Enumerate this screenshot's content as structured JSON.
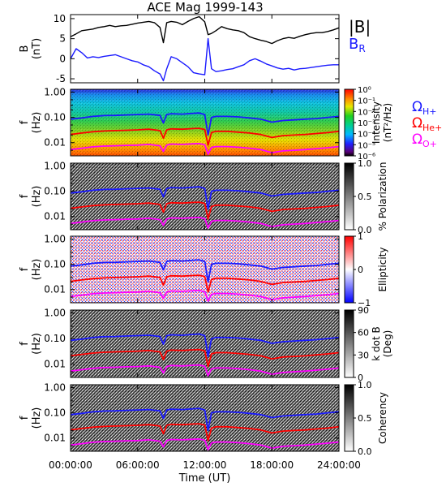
{
  "chart_data": {
    "type": "line",
    "title": "ACE Mag 1999-143",
    "xlabel": "Time (UT)",
    "x_ticks": [
      "00:00:00",
      "06:00:00",
      "12:00:00",
      "18:00:00",
      "24:00:00"
    ],
    "x_range_hours": [
      0,
      24
    ],
    "panels": [
      {
        "id": "b-field",
        "type": "line",
        "ylabel": "B",
        "yunit": "(nT)",
        "ylim": [
          -6,
          11
        ],
        "y_ticks": [
          "10",
          "5",
          "0",
          "-5"
        ],
        "legend": [
          "|B|",
          "B_R"
        ],
        "series": [
          {
            "name": "|B|",
            "color": "#000000",
            "x": [
              0,
              0.5,
              1,
              1.5,
              2,
              2.5,
              3,
              3.5,
              4,
              4.5,
              5,
              5.5,
              6,
              6.5,
              7,
              7.5,
              8,
              8.3,
              8.6,
              9,
              9.5,
              10,
              10.5,
              11,
              11.5,
              12,
              12.3,
              12.6,
              13,
              13.5,
              14,
              14.5,
              15,
              15.5,
              16,
              16.5,
              17,
              17.5,
              18,
              18.5,
              19,
              19.5,
              20,
              20.5,
              21,
              21.5,
              22,
              22.5,
              23,
              23.5,
              24
            ],
            "values": [
              5.5,
              6.2,
              7.0,
              7.2,
              7.4,
              7.8,
              8.0,
              8.3,
              8.0,
              8.2,
              8.3,
              8.6,
              8.9,
              9.1,
              9.3,
              9.0,
              7.8,
              4.0,
              9.0,
              9.3,
              9.1,
              8.5,
              9.3,
              10.0,
              10.5,
              9.2,
              6.0,
              6.3,
              7.0,
              8.0,
              7.5,
              7.2,
              7.0,
              6.5,
              5.5,
              5.0,
              4.6,
              4.3,
              3.8,
              4.5,
              5.0,
              5.3,
              5.1,
              5.6,
              6.0,
              6.3,
              6.5,
              6.5,
              6.8,
              7.2,
              7.7
            ]
          },
          {
            "name": "B_R",
            "color": "#1a1aff",
            "x": [
              0,
              0.5,
              1,
              1.5,
              2,
              2.5,
              3,
              3.5,
              4,
              4.5,
              5,
              5.5,
              6,
              6.5,
              7,
              7.5,
              8,
              8.3,
              8.6,
              9,
              9.5,
              10,
              10.5,
              11,
              11.5,
              12,
              12.3,
              12.6,
              13,
              13.5,
              14,
              14.5,
              15,
              15.5,
              16,
              16.5,
              17,
              17.5,
              18,
              18.5,
              19,
              19.5,
              20,
              20.5,
              21,
              21.5,
              22,
              22.5,
              23,
              23.5,
              24
            ],
            "values": [
              0,
              2.5,
              1.5,
              0.2,
              0.5,
              0.3,
              0.6,
              0.8,
              1.0,
              0.5,
              0.0,
              -0.5,
              -0.8,
              -1.5,
              -2.0,
              -3.0,
              -3.8,
              -5.5,
              -2.5,
              0.5,
              0.0,
              -1.0,
              -2.0,
              -3.5,
              -3.8,
              -4.0,
              5.0,
              -2.5,
              -3.2,
              -3.0,
              -2.7,
              -2.5,
              -2.0,
              -1.5,
              -0.5,
              0.0,
              -0.6,
              -1.3,
              -1.8,
              -2.3,
              -2.6,
              -2.4,
              -2.8,
              -2.5,
              -2.4,
              -2.2,
              -2.0,
              -1.8,
              -1.6,
              -1.5,
              -1.5
            ]
          }
        ]
      },
      {
        "id": "intensity",
        "type": "heatmap",
        "ylabel": "f",
        "yunit": "(Hz)",
        "y_scale": "log",
        "ylim": [
          0.003,
          1.3
        ],
        "y_ticks": [
          "1.00",
          "0.10",
          "0.01"
        ],
        "colorbar_label": "Intensity",
        "colorbar_unit": "(nT²/Hz)",
        "colorbar_ticks": [
          "10⁰",
          "10⁻¹",
          "10⁻²",
          "10⁻³",
          "10⁻⁴",
          "10⁻⁵",
          "10⁻⁶"
        ],
        "colorbar_scale": "rainbow"
      },
      {
        "id": "polarization",
        "type": "heatmap",
        "ylabel": "f",
        "yunit": "(Hz)",
        "y_scale": "log",
        "ylim": [
          0.003,
          1.3
        ],
        "y_ticks": [
          "1.00",
          "0.10",
          "0.01"
        ],
        "colorbar_label": "% Polarization",
        "colorbar_ticks": [
          "1.0",
          "0.5",
          "0.0"
        ],
        "colorbar_scale": "grayscale"
      },
      {
        "id": "ellipticity",
        "type": "heatmap",
        "ylabel": "f",
        "yunit": "(Hz)",
        "y_scale": "log",
        "ylim": [
          0.003,
          1.3
        ],
        "y_ticks": [
          "1.00",
          "0.10",
          "0.01"
        ],
        "colorbar_label": "Ellipticity",
        "colorbar_ticks": [
          "1",
          "0",
          "−1"
        ],
        "colorbar_scale": "blue-white-red"
      },
      {
        "id": "k-dot-b",
        "type": "heatmap",
        "ylabel": "f",
        "yunit": "(Hz)",
        "y_scale": "log",
        "ylim": [
          0.003,
          1.3
        ],
        "y_ticks": [
          "1.00",
          "0.10",
          "0.01"
        ],
        "colorbar_label": "k dot B",
        "colorbar_unit": "(Deg)",
        "colorbar_ticks": [
          "90",
          "60",
          "30",
          "0"
        ],
        "colorbar_scale": "grayscale"
      },
      {
        "id": "coherency",
        "type": "heatmap",
        "ylabel": "f",
        "yunit": "(Hz)",
        "y_scale": "log",
        "ylim": [
          0.003,
          1.3
        ],
        "y_ticks": [
          "1.00",
          "0.10",
          "0.01"
        ],
        "colorbar_label": "Coherency",
        "colorbar_ticks": [
          "1.0",
          "0.5",
          "0.0"
        ],
        "colorbar_scale": "grayscale"
      }
    ],
    "gyrofrequency_lines": [
      {
        "name": "ΩH+",
        "label_main": "Ω",
        "label_sub": "H+",
        "color": "#1a1aff",
        "x": [
          0,
          1,
          2,
          3,
          4,
          5,
          6,
          7,
          8,
          8.3,
          8.6,
          9,
          10,
          11,
          11.5,
          12,
          12.3,
          12.6,
          13,
          14,
          15,
          16,
          17,
          18,
          19,
          20,
          21,
          22,
          23,
          24
        ],
        "values": [
          0.085,
          0.095,
          0.11,
          0.118,
          0.12,
          0.125,
          0.13,
          0.135,
          0.12,
          0.06,
          0.13,
          0.14,
          0.135,
          0.145,
          0.15,
          0.13,
          0.02,
          0.1,
          0.11,
          0.11,
          0.105,
          0.095,
          0.085,
          0.065,
          0.075,
          0.08,
          0.085,
          0.09,
          0.1,
          0.11
        ]
      },
      {
        "name": "ΩHe+",
        "label_main": "Ω",
        "label_sub": "He+",
        "color": "#ff0000",
        "x": [
          0,
          1,
          2,
          3,
          4,
          5,
          6,
          7,
          8,
          8.3,
          8.6,
          9,
          10,
          11,
          11.5,
          12,
          12.3,
          12.6,
          13,
          14,
          15,
          16,
          17,
          18,
          19,
          20,
          21,
          22,
          23,
          24
        ],
        "values": [
          0.021,
          0.024,
          0.027,
          0.029,
          0.03,
          0.031,
          0.032,
          0.034,
          0.03,
          0.015,
          0.032,
          0.035,
          0.034,
          0.036,
          0.037,
          0.033,
          0.008,
          0.025,
          0.028,
          0.028,
          0.026,
          0.024,
          0.021,
          0.016,
          0.019,
          0.02,
          0.021,
          0.023,
          0.025,
          0.028
        ]
      },
      {
        "name": "ΩO+",
        "label_main": "Ω",
        "label_sub": "O+",
        "color": "#ff00ff",
        "x": [
          0,
          1,
          2,
          3,
          4,
          5,
          6,
          7,
          8,
          8.3,
          8.6,
          9,
          10,
          11,
          11.5,
          12,
          12.3,
          12.6,
          13,
          14,
          15,
          16,
          17,
          18,
          19,
          20,
          21,
          22,
          23,
          24
        ],
        "values": [
          0.0053,
          0.006,
          0.0068,
          0.0073,
          0.0075,
          0.0078,
          0.008,
          0.0085,
          0.0075,
          0.0045,
          0.008,
          0.0088,
          0.0085,
          0.009,
          0.0092,
          0.0082,
          0.0035,
          0.0065,
          0.007,
          0.007,
          0.0066,
          0.006,
          0.0053,
          0.004,
          0.0047,
          0.005,
          0.0053,
          0.0058,
          0.0063,
          0.007
        ]
      }
    ]
  }
}
